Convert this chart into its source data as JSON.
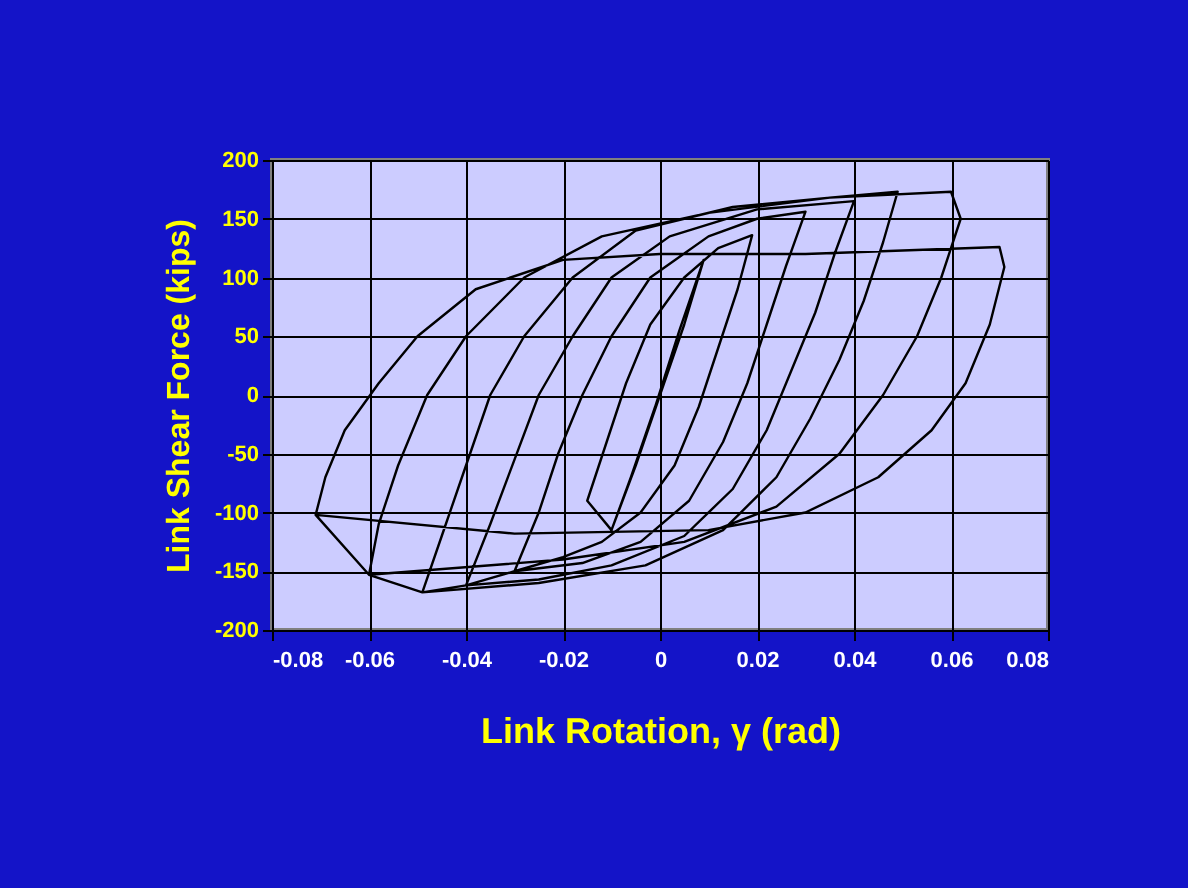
{
  "chart_data": {
    "type": "line",
    "xlabel": "Link Rotation, γ   (rad)",
    "ylabel": "Link Shear Force (kips)",
    "xlim": [
      -0.08,
      0.08
    ],
    "xticks": [
      -0.08,
      -0.06,
      -0.04,
      -0.02,
      0,
      0.02,
      0.04,
      0.06,
      0.08
    ],
    "ylim": [
      -200,
      200
    ],
    "yticks": [
      -200,
      -150,
      -100,
      -50,
      0,
      50,
      100,
      150,
      200
    ],
    "grid": true,
    "marker": "none",
    "line_style": "solid",
    "series": [
      {
        "color": "#000000",
        "x": [
          -0.01,
          -0.005,
          0,
          0.005,
          0.009,
          0.004,
          -0.001,
          -0.006,
          -0.01,
          -0.015,
          -0.011,
          -0.007,
          -0.002,
          0.005,
          0.012,
          0.019,
          0.016,
          0.012,
          0.008,
          0.003,
          -0.004,
          -0.012,
          -0.02,
          -0.03,
          -0.025,
          -0.021,
          -0.016,
          -0.01,
          -0.002,
          0.01,
          0.02,
          0.03,
          0.026,
          0.022,
          0.018,
          0.013,
          0.006,
          -0.004,
          -0.016,
          -0.03,
          -0.04,
          -0.035,
          -0.03,
          -0.025,
          -0.018,
          -0.01,
          0.002,
          0.02,
          0.04,
          0.036,
          0.032,
          0.027,
          0.022,
          0.015,
          0.005,
          -0.01,
          -0.025,
          -0.04,
          -0.049,
          -0.045,
          -0.04,
          -0.035,
          -0.028,
          -0.018,
          -0.005,
          0.015,
          0.035,
          0.049,
          0.046,
          0.042,
          0.037,
          0.031,
          0.024,
          0.013,
          -0.003,
          -0.025,
          -0.049,
          -0.06,
          -0.058,
          -0.054,
          -0.048,
          -0.04,
          -0.028,
          -0.012,
          0.01,
          0.035,
          0.06,
          0.062,
          0.058,
          0.053,
          0.046,
          0.037,
          0.024,
          0.005,
          -0.02,
          -0.06,
          -0.071,
          -0.069,
          -0.065,
          -0.058,
          -0.05,
          -0.038,
          -0.02,
          0.0,
          0.03,
          0.07,
          0.071,
          0.068,
          0.063,
          0.056,
          0.045,
          0.03,
          0.01,
          -0.03,
          -0.071
        ],
        "values": [
          -115,
          -60,
          0,
          60,
          115,
          55,
          -10,
          -70,
          -115,
          -90,
          -40,
          10,
          60,
          100,
          125,
          136,
          90,
          40,
          -10,
          -60,
          -100,
          -125,
          -138,
          -150,
          -100,
          -50,
          0,
          50,
          100,
          135,
          150,
          156,
          110,
          60,
          10,
          -40,
          -90,
          -125,
          -143,
          -150,
          -162,
          -110,
          -55,
          0,
          50,
          100,
          135,
          158,
          165,
          120,
          70,
          20,
          -30,
          -80,
          -120,
          -145,
          -157,
          -162,
          -168,
          -120,
          -60,
          0,
          50,
          100,
          140,
          160,
          168,
          173,
          130,
          80,
          30,
          -20,
          -70,
          -115,
          -145,
          -160,
          -168,
          -153,
          -110,
          -60,
          0,
          50,
          100,
          135,
          155,
          168,
          173,
          150,
          100,
          50,
          0,
          -50,
          -95,
          -125,
          -140,
          -153,
          -102,
          -70,
          -30,
          10,
          50,
          90,
          115,
          120,
          120,
          126,
          109,
          60,
          10,
          -30,
          -70,
          -100,
          -115,
          -118,
          -102
        ]
      }
    ]
  }
}
